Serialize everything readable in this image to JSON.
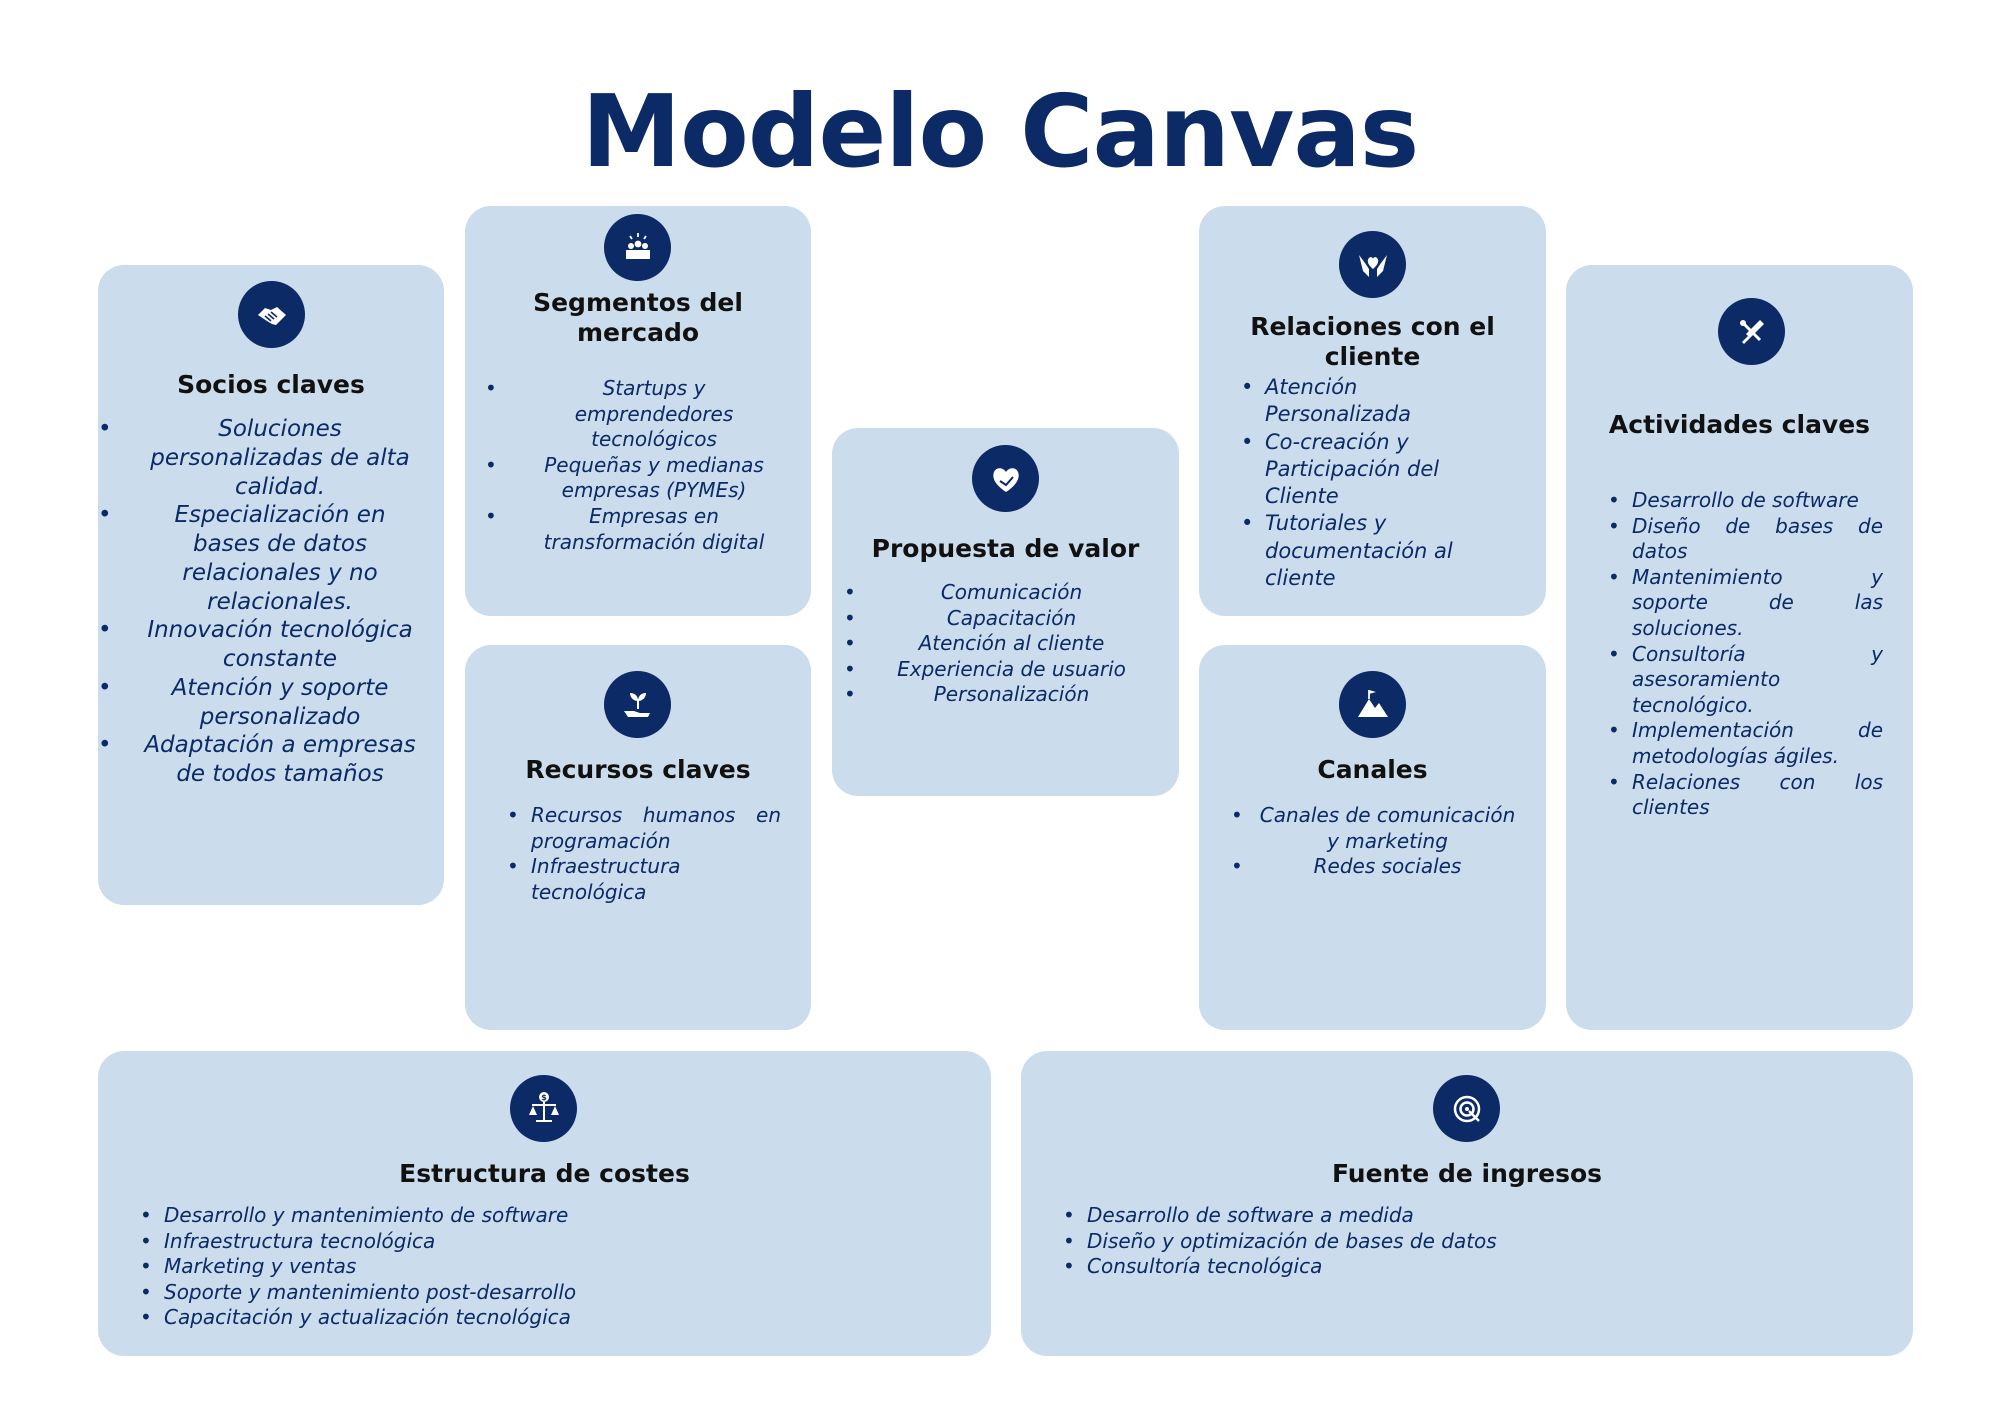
{
  "title": "Modelo Canvas",
  "accent_color": "#0b2a66",
  "card_color": "#cbdcec",
  "cards": {
    "socios": {
      "title": "Socios claves",
      "icon": "handshake-icon",
      "items": [
        "Soluciones personalizadas de alta calidad.",
        "Especialización en bases de datos relacionales y no relacionales.",
        "Innovación tecnológica constante",
        "Atención y soporte personalizado",
        "Adaptación a empresas de todos tamaños"
      ]
    },
    "segmentos": {
      "title": "Segmentos del mercado",
      "icon": "audience-icon",
      "items": [
        "Startups y emprendedores tecnológicos",
        "Pequeñas y medianas empresas (PYMEs)",
        "Empresas en transformación digital"
      ]
    },
    "propuesta": {
      "title": "Propuesta de valor",
      "icon": "heart-hand-icon",
      "items": [
        "Comunicación",
        "Capacitación",
        "Atención al cliente",
        "Experiencia de usuario",
        "Personalización"
      ]
    },
    "relaciones": {
      "title": "Relaciones con el cliente",
      "icon": "hands-heart-icon",
      "items": [
        "Atención Personalizada",
        "Co-creación y Participación del Cliente",
        "Tutoriales y documentación al cliente"
      ]
    },
    "actividades": {
      "title": "Actividades claves",
      "icon": "tools-icon",
      "items": [
        "Desarrollo de software",
        "Diseño de bases de datos",
        "Mantenimiento y soporte de las soluciones.",
        "Consultoría y asesoramiento tecnológico.",
        "Implementación de metodologías ágiles.",
        "Relaciones con los clientes"
      ]
    },
    "recursos": {
      "title": "Recursos claves",
      "icon": "plant-hand-icon",
      "items": [
        "Recursos humanos en programación",
        "Infraestructura tecnológica"
      ]
    },
    "canales": {
      "title": "Canales",
      "icon": "mountain-flag-icon",
      "items": [
        "Canales de comunicación y marketing",
        "Redes sociales"
      ]
    },
    "costes": {
      "title": "Estructura de costes",
      "icon": "scale-dollar-icon",
      "items": [
        "Desarrollo y mantenimiento de software",
        "Infraestructura tecnológica",
        "Marketing y ventas",
        "Soporte y mantenimiento post-desarrollo",
        "Capacitación y actualización tecnológica"
      ]
    },
    "ingresos": {
      "title": "Fuente de ingresos",
      "icon": "target-icon",
      "items": [
        "Desarrollo de software a medida",
        "Diseño y optimización de bases de datos",
        "Consultoría tecnológica"
      ]
    }
  }
}
